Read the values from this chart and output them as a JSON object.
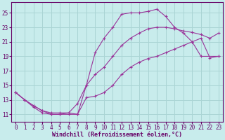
{
  "xlabel": "Windchill (Refroidissement éolien,°C)",
  "bg_color": "#c8ecec",
  "line_color": "#993399",
  "grid_color": "#aad4d4",
  "axis_color": "#660066",
  "xlim": [
    -0.5,
    23.5
  ],
  "ylim": [
    10.0,
    26.5
  ],
  "xticks": [
    0,
    1,
    2,
    3,
    4,
    5,
    6,
    7,
    8,
    9,
    10,
    11,
    12,
    13,
    14,
    15,
    16,
    17,
    18,
    19,
    20,
    21,
    22,
    23
  ],
  "yticks": [
    11,
    13,
    15,
    17,
    19,
    21,
    23,
    25
  ],
  "curve1_x": [
    0,
    1,
    2,
    3,
    4,
    5,
    6,
    7,
    8,
    9,
    10,
    11,
    12,
    13,
    14,
    15,
    16,
    17,
    18,
    19,
    20,
    21,
    23
  ],
  "curve1_y": [
    14.0,
    13.0,
    12.0,
    11.2,
    11.0,
    11.0,
    11.2,
    11.0,
    15.0,
    19.5,
    21.5,
    23.0,
    24.8,
    25.0,
    25.0,
    25.2,
    25.5,
    24.5,
    23.0,
    22.2,
    21.0,
    19.0,
    19.0
  ],
  "curve2_x": [
    0,
    1,
    2,
    3,
    4,
    5,
    6,
    7,
    8,
    9,
    10,
    11,
    12,
    13,
    14,
    15,
    16,
    17,
    18,
    19,
    20,
    21,
    22,
    23
  ],
  "curve2_y": [
    14.0,
    13.0,
    12.2,
    11.5,
    11.2,
    11.2,
    11.2,
    12.5,
    15.0,
    16.5,
    17.5,
    19.0,
    20.5,
    21.5,
    22.2,
    22.8,
    23.0,
    23.0,
    22.8,
    22.5,
    22.3,
    22.0,
    21.5,
    22.2
  ],
  "curve3_x": [
    0,
    1,
    2,
    3,
    4,
    5,
    6,
    7,
    8,
    9,
    10,
    11,
    12,
    13,
    14,
    15,
    16,
    17,
    18,
    19,
    20,
    21,
    22,
    23
  ],
  "curve3_y": [
    14.0,
    13.0,
    12.2,
    11.5,
    11.0,
    11.0,
    11.0,
    11.0,
    13.3,
    13.5,
    14.0,
    15.0,
    16.5,
    17.5,
    18.2,
    18.7,
    19.0,
    19.5,
    20.0,
    20.5,
    21.0,
    21.5,
    18.8,
    19.0
  ]
}
